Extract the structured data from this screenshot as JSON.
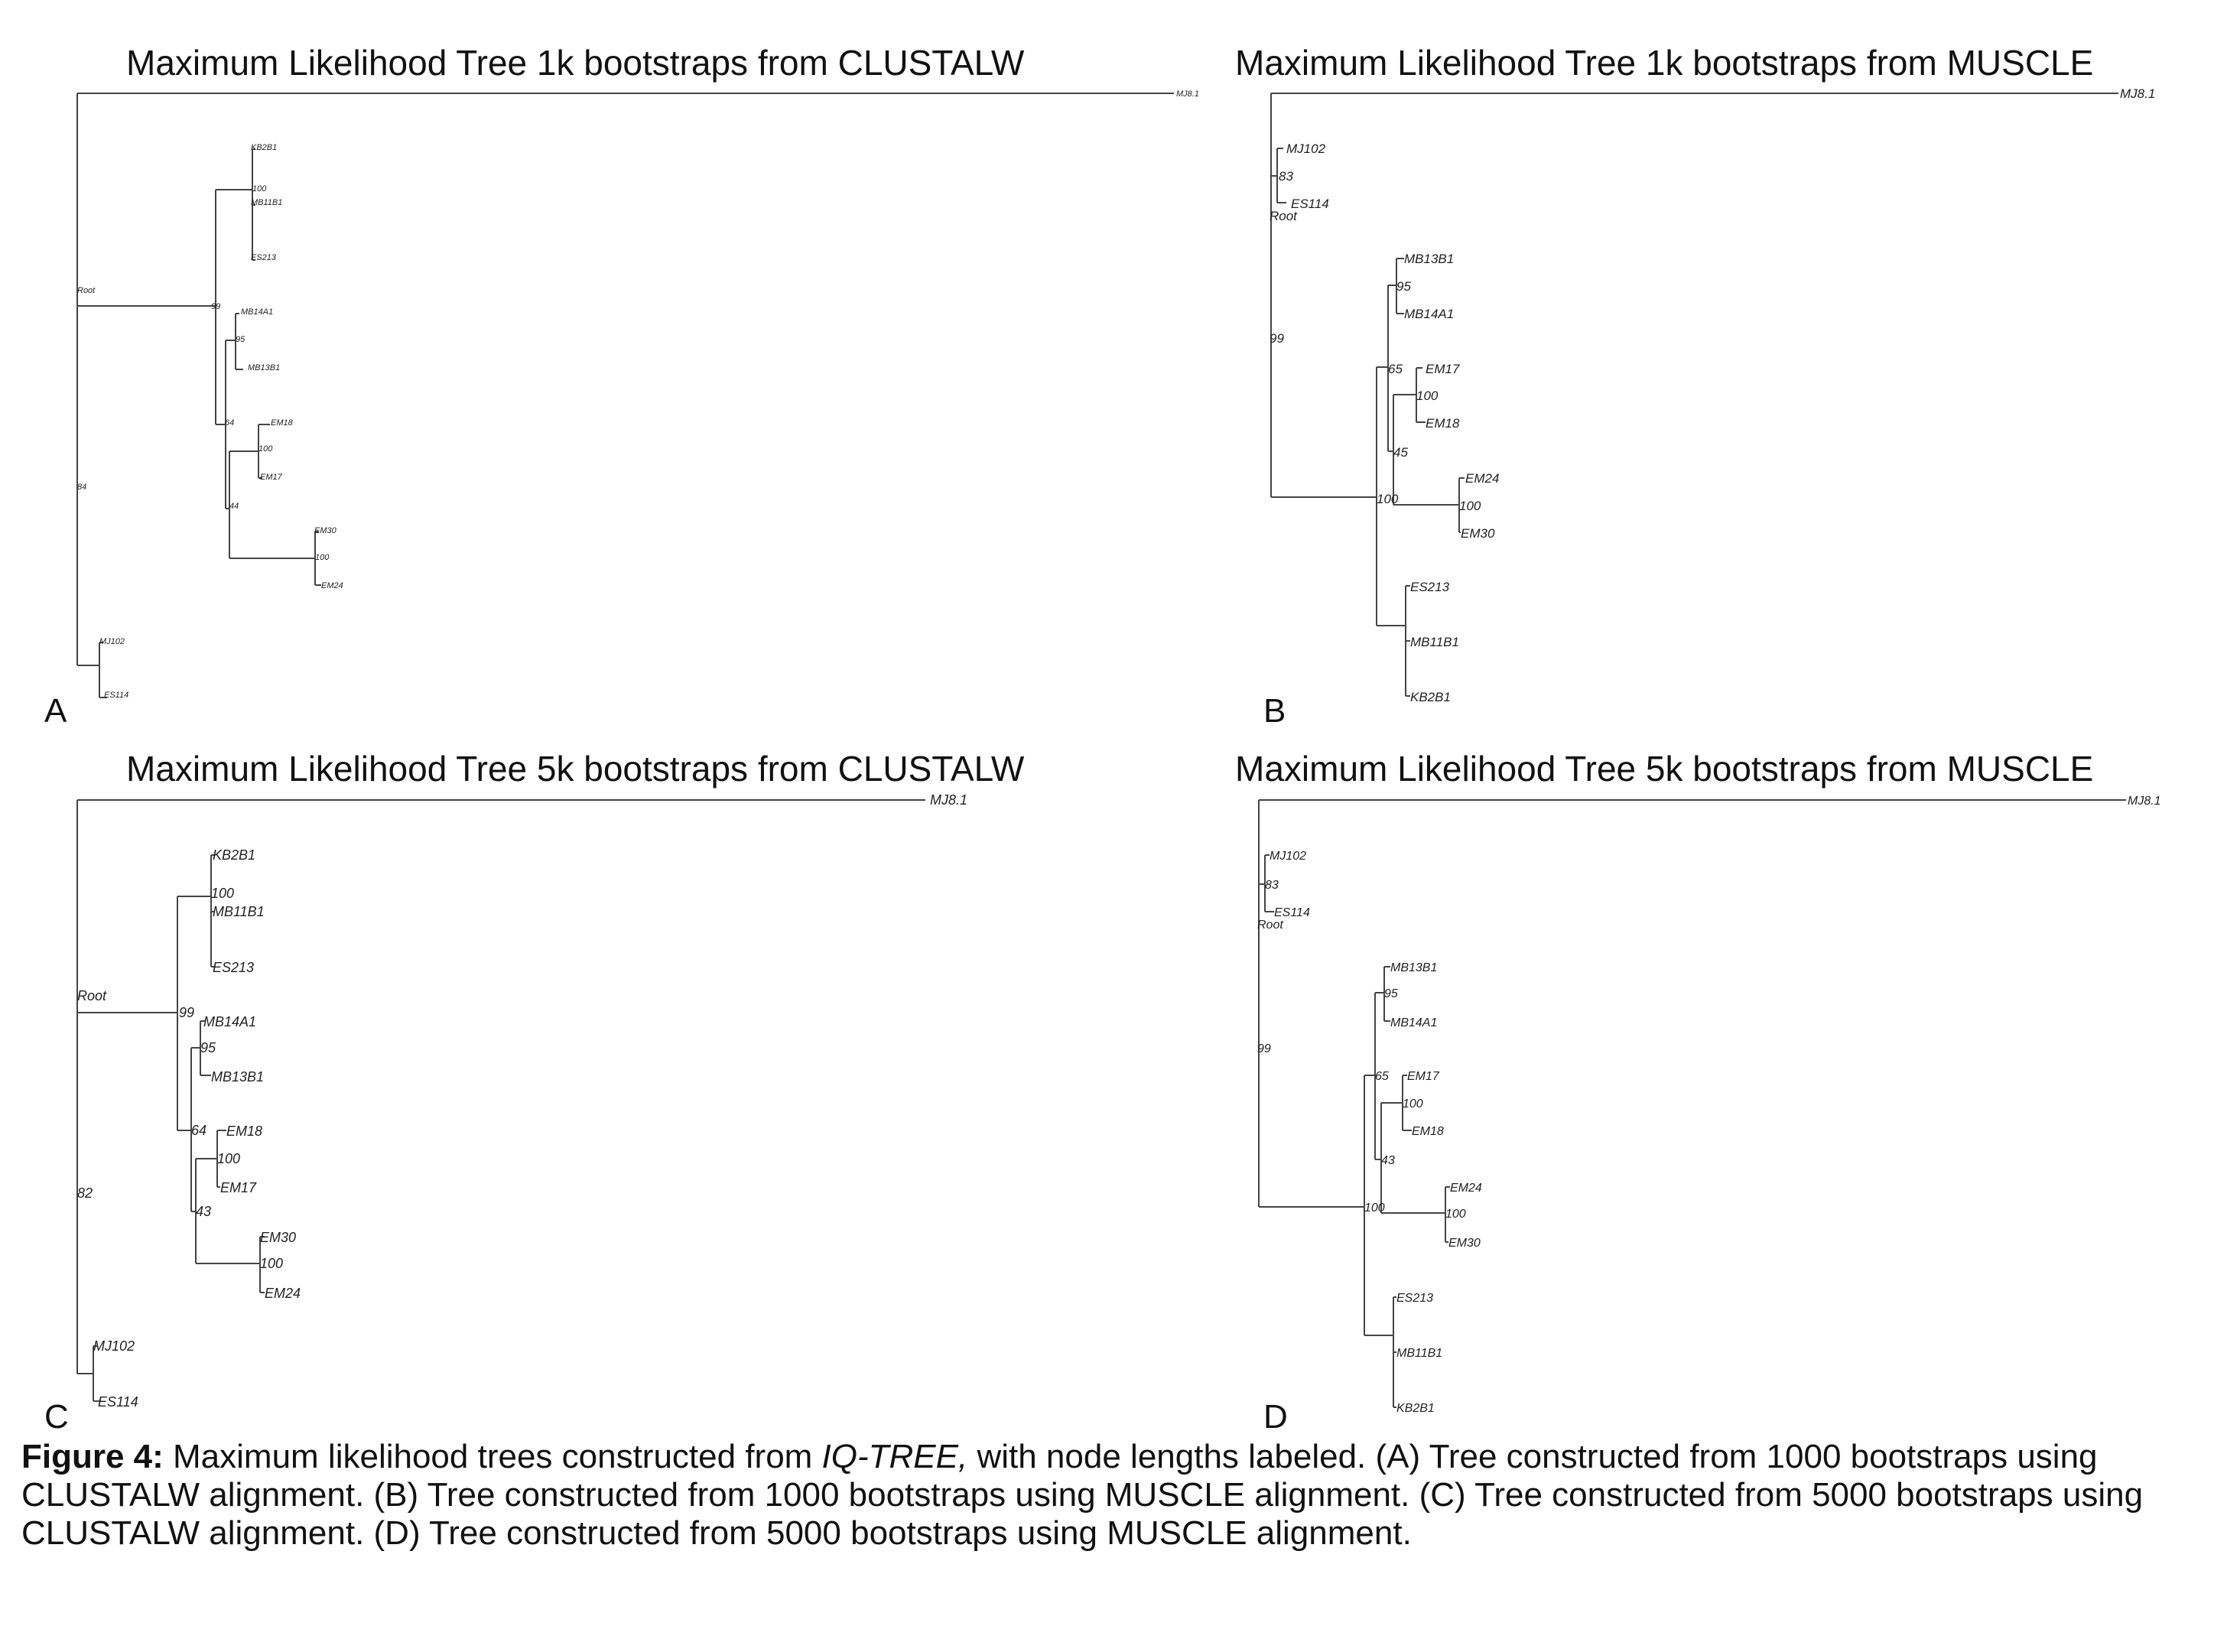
{
  "panels": [
    {
      "id": "A",
      "title": "Maximum Likelihood Tree 1k bootstraps from CLUSTALW",
      "letter": "A",
      "taxa_labels": [
        "MJ8.1",
        "KB2B1",
        "MB11B1",
        "ES213",
        "MB14A1",
        "MB13B1",
        "EM18",
        "EM17",
        "EM30",
        "EM24",
        "MJ102",
        "ES114"
      ],
      "node_labels": [
        "Root",
        "100",
        "99",
        "95",
        "64",
        "100",
        "44",
        "100",
        "84"
      ]
    },
    {
      "id": "B",
      "title": "Maximum Likelihood Tree 1k bootstraps from MUSCLE",
      "letter": "B",
      "taxa_labels": [
        "MJ8.1",
        "MJ102",
        "ES114",
        "MB13B1",
        "MB14A1",
        "EM17",
        "EM18",
        "EM24",
        "EM30",
        "ES213",
        "MB11B1",
        "KB2B1"
      ],
      "node_labels": [
        "83",
        "Root",
        "95",
        "99",
        "65",
        "100",
        "45",
        "100",
        "100"
      ]
    },
    {
      "id": "C",
      "title": "Maximum Likelihood Tree 5k bootstraps from CLUSTALW",
      "letter": "C",
      "taxa_labels": [
        "MJ8.1",
        "KB2B1",
        "MB11B1",
        "ES213",
        "MB14A1",
        "MB13B1",
        "EM18",
        "EM17",
        "EM30",
        "EM24",
        "MJ102",
        "ES114"
      ],
      "node_labels": [
        "100",
        "Root",
        "99",
        "95",
        "64",
        "100",
        "43",
        "100",
        "82"
      ]
    },
    {
      "id": "D",
      "title": "Maximum Likelihood Tree 5k bootstraps from MUSCLE",
      "letter": "D",
      "taxa_labels": [
        "MJ8.1",
        "MJ102",
        "ES114",
        "MB13B1",
        "MB14A1",
        "EM17",
        "EM18",
        "EM24",
        "EM30",
        "ES213",
        "MB11B1",
        "KB2B1"
      ],
      "node_labels": [
        "83",
        "Root",
        "95",
        "99",
        "65",
        "100",
        "43",
        "100",
        "100"
      ]
    }
  ],
  "caption": {
    "lead": "Figure 4:",
    "part1": " Maximum likelihood trees constructed from ",
    "software": "IQ-TREE,",
    "part2": " with node lengths labeled. (A) Tree constructed from 1000 bootstraps using CLUSTALW alignment. (B) Tree constructed from 1000 bootstraps using MUSCLE alignment. (C) Tree constructed from 5000 bootstraps using CLUSTALW alignment. (D) Tree constructed from 5000 bootstraps using MUSCLE alignment."
  }
}
